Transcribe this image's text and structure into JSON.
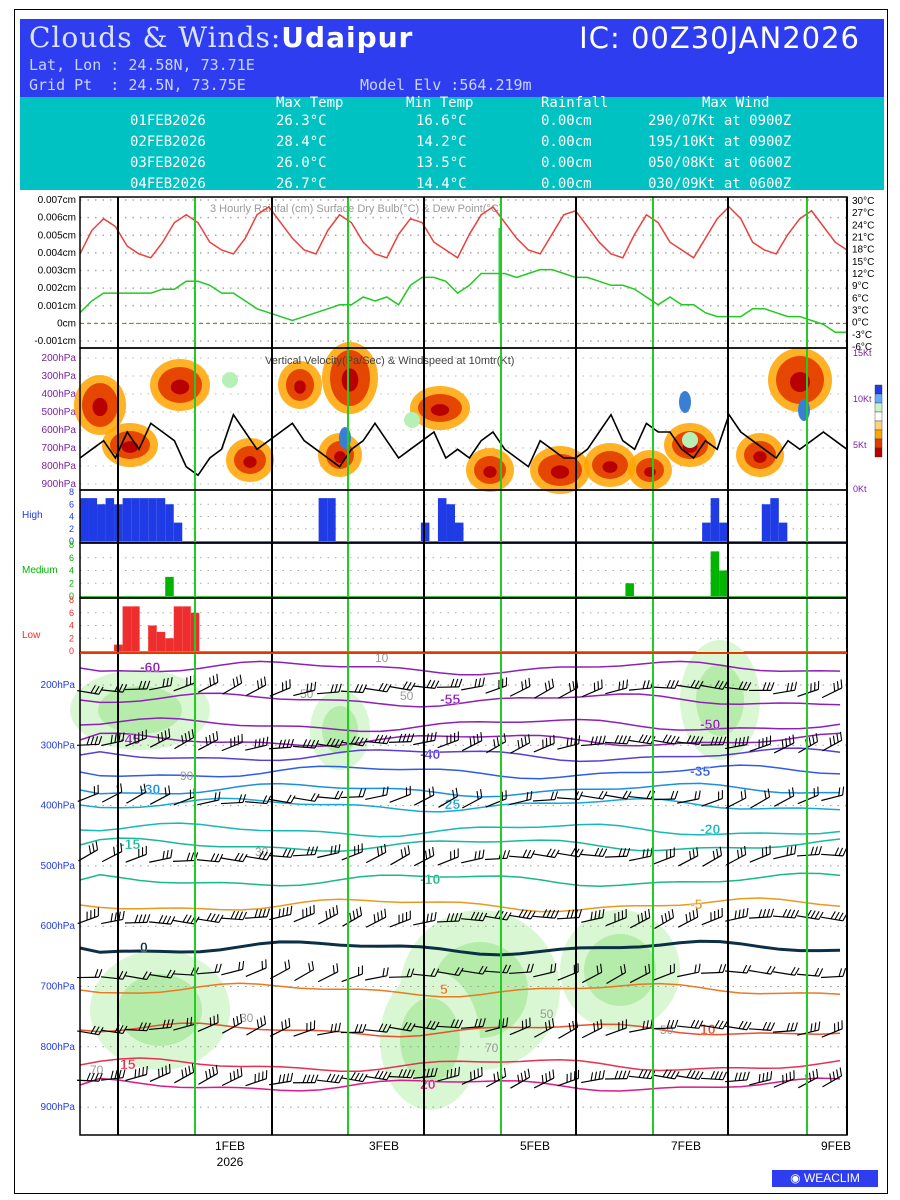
{
  "header": {
    "title_prefix": "Clouds & Winds:",
    "station": "Udaipur",
    "ic": "IC: 00Z30JAN2026",
    "latlon": "Lat, Lon : 24.58N, 73.71E",
    "gridpt": "Grid Pt  : 24.5N, 73.75E",
    "model_elv": "Model Elv :564.219m"
  },
  "summary": {
    "columns": [
      "Max Temp",
      "Min Temp",
      "Rainfall",
      "Max Wind"
    ],
    "rows": [
      {
        "date": "01FEB2026",
        "max": "26.3°C",
        "min": "16.6°C",
        "rain": "0.00cm",
        "wind": "290/07Kt at 0900Z"
      },
      {
        "date": "02FEB2026",
        "max": "28.4°C",
        "min": "14.2°C",
        "rain": "0.00cm",
        "wind": "195/10Kt at 0900Z"
      },
      {
        "date": "03FEB2026",
        "max": "26.0°C",
        "min": "13.5°C",
        "rain": "0.00cm",
        "wind": "050/08Kt at 0600Z"
      },
      {
        "date": "04FEB2026",
        "max": "26.7°C",
        "min": "14.4°C",
        "rain": "0.00cm",
        "wind": "030/09Kt at 0600Z"
      }
    ]
  },
  "colors": {
    "header": "#2f3df0",
    "table": "#00c2c2",
    "temp": "#e8413c",
    "dew": "#22c922",
    "rain": "#2ecc40",
    "high": "#1f3be6",
    "medium": "#00b400",
    "low": "#ee2e2e",
    "daylines": "#22cc22"
  },
  "chart_data": [
    {
      "type": "line",
      "title": "3 Hourly Rainfal (cm)  Surface Dry Bulb(°C)  & Dew Point(°C)",
      "left_ticks": [
        "0.007cm",
        "0.006cm",
        "0.005cm",
        "0.004cm",
        "0.003cm",
        "0.002cm",
        "0.001cm",
        "0cm",
        "-0.001cm"
      ],
      "right_ticks": [
        "30°C",
        "27°C",
        "24°C",
        "21°C",
        "18°C",
        "15°C",
        "12°C",
        "9°C",
        "6°C",
        "3°C",
        "0°C",
        "-3°C",
        "-6°C"
      ],
      "ylim_left": [
        -0.001,
        0.007
      ],
      "ylim_right": [
        -6,
        30
      ],
      "series": [
        {
          "name": "Surface Dry Bulb(°C)",
          "unit": "°C",
          "values": [
            17,
            23,
            26,
            24,
            19,
            17,
            16,
            20,
            25,
            27,
            25,
            20,
            18,
            17,
            21,
            27,
            29,
            25,
            21,
            18,
            17,
            23,
            27,
            25,
            20,
            17,
            16,
            22,
            26,
            25,
            20,
            18,
            16,
            22,
            27,
            29,
            25,
            21,
            18,
            17,
            22,
            27,
            28,
            24,
            20,
            17,
            16,
            22,
            27,
            25,
            20,
            18,
            16,
            21,
            26,
            29,
            26,
            20,
            18,
            17,
            22,
            26,
            28,
            24,
            20,
            18
          ]
        },
        {
          "name": "Dew Point(°C)",
          "unit": "°C",
          "values": [
            2,
            5,
            7,
            7,
            7,
            7,
            7,
            8,
            8,
            10,
            10,
            9,
            7,
            7,
            5,
            3,
            2,
            1,
            0,
            1,
            2,
            3,
            4,
            4,
            6,
            5,
            6,
            4,
            9,
            11,
            11,
            10,
            7,
            9,
            12,
            12,
            12,
            11,
            12,
            13,
            13,
            12,
            11,
            11,
            10,
            9,
            9,
            8,
            6,
            4,
            6,
            4,
            4,
            2,
            1,
            1,
            1,
            3,
            3,
            2,
            1,
            1,
            0,
            -1,
            -3,
            -3
          ]
        }
      ]
    },
    {
      "type": "heatmap",
      "title": "Vertical Velocity(Pa/Sec) & Windspeed at 10mtr(Kt)",
      "y_ticks": [
        "200hPa",
        "300hPa",
        "400hPa",
        "500hPa",
        "600hPa",
        "700hPa",
        "800hPa",
        "900hPa"
      ],
      "right_ticks": [
        "15Kt",
        "10Kt",
        "5Kt",
        "0Kt"
      ],
      "series": [
        {
          "name": "Windspeed at 10mtr(Kt)",
          "unit": "Kt",
          "values": [
            3,
            4,
            5,
            3,
            6,
            4,
            7,
            6,
            5,
            2,
            1,
            3,
            4,
            8,
            6,
            4,
            5,
            6,
            7,
            5,
            4,
            3,
            2,
            4,
            5,
            7,
            5,
            3,
            4,
            5,
            6,
            3,
            4,
            3,
            5,
            6,
            4,
            3,
            2,
            5,
            4,
            3,
            3,
            4,
            6,
            8,
            5,
            4,
            7,
            6,
            6,
            4,
            3,
            5,
            4,
            8,
            6,
            5,
            4,
            3,
            5,
            4,
            5,
            6,
            5,
            4
          ]
        }
      ]
    },
    {
      "type": "bar",
      "title": "High",
      "y_ticks": [
        "8",
        "6",
        "4",
        "2",
        "0"
      ],
      "ylim": [
        0,
        8
      ],
      "series": [
        {
          "name": "High",
          "values": [
            7,
            7,
            6,
            7,
            6,
            7,
            7,
            7,
            7,
            7,
            6,
            3,
            0,
            0,
            0,
            0,
            0,
            0,
            0,
            0,
            0,
            0,
            0,
            0,
            0,
            0,
            0,
            0,
            7,
            7,
            0,
            0,
            0,
            0,
            0,
            0,
            0,
            0,
            0,
            0,
            3,
            0,
            7,
            6,
            3,
            0,
            0,
            0,
            0,
            0,
            0,
            0,
            0,
            0,
            0,
            0,
            0,
            0,
            0,
            0,
            0,
            0,
            0,
            0,
            0,
            0,
            0,
            0,
            0,
            0,
            0,
            0,
            0,
            3,
            7,
            3,
            0,
            0,
            0,
            0,
            6,
            7,
            3,
            0,
            0,
            0,
            0,
            0,
            0,
            0
          ]
        }
      ]
    },
    {
      "type": "bar",
      "title": "Medium",
      "y_ticks": [
        "8",
        "6",
        "4",
        "2",
        "0"
      ],
      "ylim": [
        0,
        8
      ],
      "series": [
        {
          "name": "Medium",
          "values": [
            0,
            0,
            0,
            0,
            0,
            0,
            0,
            0,
            0,
            0,
            3,
            0,
            0,
            0,
            0,
            0,
            0,
            0,
            0,
            0,
            0,
            0,
            0,
            0,
            0,
            0,
            0,
            0,
            0,
            0,
            0,
            0,
            0,
            0,
            0,
            0,
            0,
            0,
            0,
            0,
            0,
            0,
            0,
            0,
            0,
            0,
            0,
            0,
            0,
            0,
            0,
            0,
            0,
            0,
            0,
            0,
            0,
            0,
            0,
            0,
            0,
            0,
            0,
            0,
            2,
            0,
            0,
            0,
            0,
            0,
            0,
            0,
            0,
            0,
            7,
            4,
            0,
            0,
            0,
            0,
            0,
            0,
            0,
            0,
            0,
            0,
            0,
            0,
            0,
            0
          ]
        }
      ]
    },
    {
      "type": "bar",
      "title": "Low",
      "y_ticks": [
        "8",
        "6",
        "4",
        "2",
        "0"
      ],
      "ylim": [
        0,
        8
      ],
      "series": [
        {
          "name": "Low",
          "values": [
            0,
            0,
            0,
            0,
            1,
            7,
            7,
            0,
            4,
            3,
            2,
            7,
            7,
            6,
            0,
            0,
            0,
            0,
            0,
            0,
            0,
            0,
            0,
            0,
            0,
            0,
            0,
            0,
            0,
            0,
            0,
            0,
            0,
            0,
            0,
            0,
            0,
            0,
            0,
            0,
            0,
            0,
            0,
            0,
            0,
            0,
            0,
            0,
            0,
            0,
            0,
            0,
            0,
            0,
            0,
            0,
            0,
            0,
            0,
            0,
            0,
            0,
            0,
            0,
            0,
            0,
            0,
            0,
            0,
            0,
            0,
            0,
            0,
            0,
            0,
            0,
            0,
            0,
            0,
            0,
            0,
            0,
            0,
            0,
            0,
            0,
            0,
            0,
            0,
            0
          ]
        }
      ]
    },
    {
      "type": "line",
      "title": "",
      "y_ticks": [
        "200hPa",
        "300hPa",
        "400hPa",
        "500hPa",
        "600hPa",
        "700hPa",
        "800hPa",
        "900hPa"
      ],
      "x_ticks": [
        "1FEB",
        "2026",
        "3FEB",
        "5FEB",
        "7FEB",
        "9FEB"
      ],
      "contour_labels": [
        "-60",
        "-55",
        "-50",
        "-45",
        "-40",
        "-35",
        "-30",
        "-25",
        "-20",
        "-15",
        "-10",
        "-5",
        "0",
        "5",
        "10",
        "15",
        "20"
      ],
      "humidity_labels": [
        "10",
        "30",
        "50",
        "70",
        "90"
      ]
    }
  ],
  "logo": "WEACLIM"
}
